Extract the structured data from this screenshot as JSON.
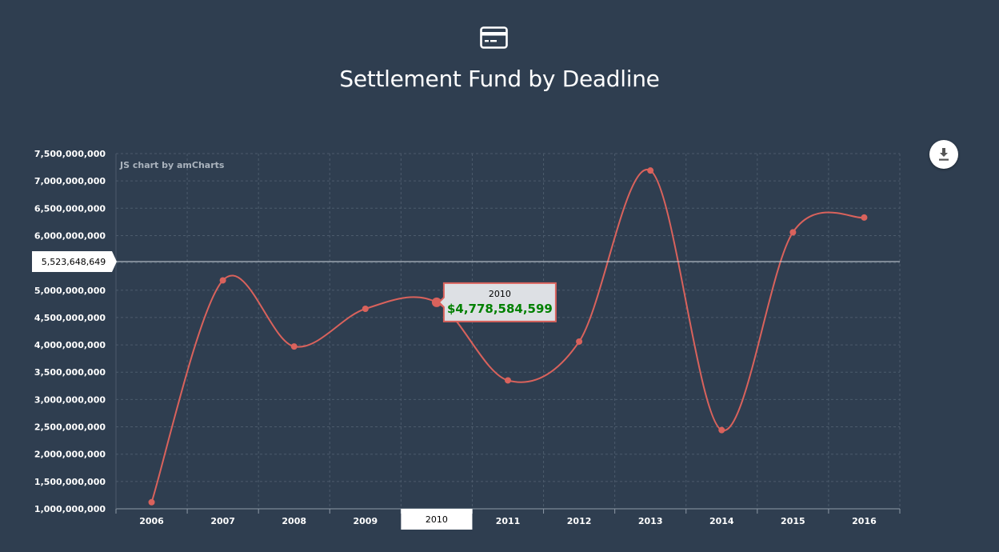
{
  "header": {
    "icon": "credit-card-icon",
    "title": "Settlement Fund by Deadline"
  },
  "toolbar": {
    "download_icon": "download-icon"
  },
  "credit": "JS chart by amCharts",
  "cursor": {
    "value_label": "5,523,648,649",
    "value": 5523648649,
    "category": "2010"
  },
  "tooltip": {
    "category": "2010",
    "value_text": "$4,778,584,599"
  },
  "colors": {
    "background": "#2f3e50",
    "line": "#d9625c",
    "tooltip_value": "#008000",
    "guide": "#cfd6de"
  },
  "chart_data": {
    "type": "line",
    "smooth": true,
    "title": "Settlement Fund by Deadline",
    "xlabel": "",
    "ylabel": "",
    "categories": [
      "2006",
      "2007",
      "2008",
      "2009",
      "2010",
      "2011",
      "2012",
      "2013",
      "2014",
      "2015",
      "2016"
    ],
    "values": [
      1120000000,
      5180000000,
      3970000000,
      4660000000,
      4778584599,
      3350000000,
      4060000000,
      7190000000,
      2440000000,
      6060000000,
      6330000000
    ],
    "ylim": [
      1000000000,
      7500000000
    ],
    "yticks": [
      1000000000,
      1500000000,
      2000000000,
      2500000000,
      3000000000,
      3500000000,
      4000000000,
      4500000000,
      5000000000,
      5500000000,
      6000000000,
      6500000000,
      7000000000,
      7500000000
    ],
    "grid": true,
    "legend": "none"
  }
}
